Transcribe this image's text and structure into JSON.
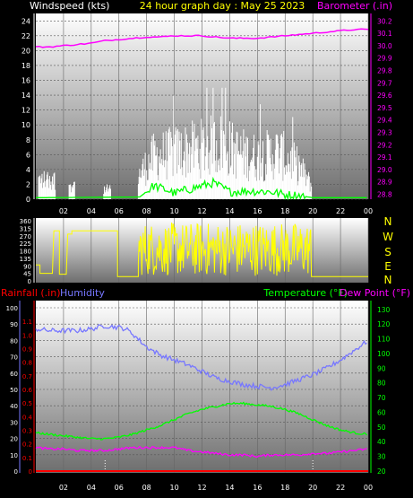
{
  "header": {
    "left": "Windspeed (kts)",
    "center": "24 hour graph day : May 25 2023",
    "right": "Barometer (.in)"
  },
  "lower_header": {
    "rainfall": "Rainfall (.in)",
    "humidity": "Humidity",
    "temperature": "Temperature (°F)",
    "dewpoint": "Dew Point (°F)"
  },
  "compass": [
    "N",
    "W",
    "S",
    "E",
    "N"
  ],
  "colors": {
    "background": "#000000",
    "panel_top": "#ffffff",
    "panel_bottom": "#6e6e6e",
    "wind": "#ffffff",
    "wind_avg": "#00ff00",
    "barometer": "#ff00ff",
    "direction": "#ffff00",
    "rain": "#ff0000",
    "humidity": "#7777ff",
    "temperature": "#00ff00",
    "dewpoint": "#ff00ff",
    "axis_text": "#ffffff"
  },
  "chart_data": [
    {
      "type": "bar",
      "name": "windspeed",
      "x_ticks": [
        "02",
        "04",
        "06",
        "08",
        "10",
        "12",
        "14",
        "16",
        "18",
        "20",
        "22",
        "00"
      ],
      "xlim_hours": [
        0,
        24
      ],
      "ylabel": "Windspeed (kts)",
      "ylim": [
        0,
        25
      ],
      "y_ticks": [
        0,
        2,
        4,
        6,
        8,
        10,
        12,
        14,
        16,
        18,
        20,
        22,
        24
      ],
      "gust_segments": [
        {
          "hours": [
            0.2,
            1.4
          ],
          "max": 4
        },
        {
          "hours": [
            2.4,
            2.8
          ],
          "max": 3
        },
        {
          "hours": [
            4.9,
            5.4
          ],
          "max": 2
        },
        {
          "hours": [
            7.4,
            19.9
          ],
          "max": 15
        }
      ],
      "gust_profile": [
        [
          7.4,
          5
        ],
        [
          8.5,
          9
        ],
        [
          10,
          10
        ],
        [
          12,
          11
        ],
        [
          13.5,
          12
        ],
        [
          14.5,
          10
        ],
        [
          16,
          9
        ],
        [
          17.5,
          10
        ],
        [
          19,
          7
        ],
        [
          19.9,
          3
        ]
      ],
      "avg_profile": [
        [
          0,
          0.2
        ],
        [
          7.5,
          0.3
        ],
        [
          8,
          1
        ],
        [
          8.5,
          1.8
        ],
        [
          9.5,
          1.2
        ],
        [
          10,
          0.8
        ],
        [
          11,
          1.3
        ],
        [
          12,
          1.8
        ],
        [
          12.8,
          2.2
        ],
        [
          13.5,
          1.5
        ],
        [
          14,
          1.0
        ],
        [
          15.5,
          1.1
        ],
        [
          17,
          1.0
        ],
        [
          18,
          0.6
        ],
        [
          19,
          0.5
        ],
        [
          20,
          0.2
        ],
        [
          24,
          0.2
        ]
      ]
    },
    {
      "type": "line",
      "name": "barometer",
      "ylabel": "Barometer (.in)",
      "ylim": [
        28.76,
        30.26
      ],
      "y_ticks": [
        28.8,
        28.9,
        29.0,
        29.1,
        29.2,
        29.3,
        29.4,
        29.5,
        29.6,
        29.7,
        29.8,
        29.9,
        30.0,
        30.1,
        30.2
      ],
      "points": [
        [
          0,
          29.99
        ],
        [
          1,
          29.99
        ],
        [
          2,
          30.0
        ],
        [
          3,
          30.01
        ],
        [
          4,
          30.02
        ],
        [
          5,
          30.04
        ],
        [
          6,
          30.05
        ],
        [
          7,
          30.06
        ],
        [
          8,
          30.07
        ],
        [
          9,
          30.07
        ],
        [
          10,
          30.08
        ],
        [
          11,
          30.08
        ],
        [
          12,
          30.08
        ],
        [
          13,
          30.07
        ],
        [
          14,
          30.06
        ],
        [
          15,
          30.06
        ],
        [
          16,
          30.06
        ],
        [
          17,
          30.07
        ],
        [
          18,
          30.08
        ],
        [
          19,
          30.09
        ],
        [
          20,
          30.1
        ],
        [
          21,
          30.11
        ],
        [
          22,
          30.12
        ],
        [
          23,
          30.13
        ],
        [
          24,
          30.13
        ]
      ]
    },
    {
      "type": "line",
      "name": "wind_direction",
      "x_ticks": [
        "02",
        "04",
        "06",
        "08",
        "10",
        "12",
        "14",
        "16",
        "18",
        "20",
        "22",
        "00"
      ],
      "ylim": [
        0,
        360
      ],
      "y_ticks": [
        0,
        45,
        90,
        135,
        180,
        225,
        270,
        315,
        360
      ],
      "calm_segments": [
        {
          "hours": [
            0.0,
            0.3
          ],
          "deg": 95
        },
        {
          "hours": [
            0.3,
            1.2
          ],
          "deg": 45
        },
        {
          "hours": [
            1.3,
            1.7
          ],
          "deg": 300
        },
        {
          "hours": [
            1.7,
            2.2
          ],
          "deg": 40
        },
        {
          "hours": [
            2.3,
            2.6
          ],
          "deg": 280
        },
        {
          "hours": [
            2.6,
            5.9
          ],
          "deg": 300
        },
        {
          "hours": [
            5.9,
            7.4
          ],
          "deg": 25
        },
        {
          "hours": [
            19.9,
            24
          ],
          "deg": 25
        }
      ],
      "active_hours": [
        7.4,
        19.9
      ],
      "active_range": [
        30,
        350
      ]
    },
    {
      "type": "line",
      "name": "humidity",
      "ylabel": "Humidity",
      "ylim": [
        0,
        100
      ],
      "y_ticks": [
        0,
        10,
        20,
        30,
        40,
        50,
        60,
        70,
        80,
        90,
        100
      ],
      "points": [
        [
          0,
          87
        ],
        [
          1,
          86
        ],
        [
          2,
          86
        ],
        [
          3,
          86
        ],
        [
          4,
          87
        ],
        [
          5,
          89
        ],
        [
          6,
          88
        ],
        [
          6.5,
          87
        ],
        [
          7,
          84
        ],
        [
          8,
          76
        ],
        [
          9,
          71
        ],
        [
          10,
          68
        ],
        [
          11,
          65
        ],
        [
          12,
          61
        ],
        [
          13,
          57
        ],
        [
          14,
          55
        ],
        [
          15,
          53
        ],
        [
          16,
          52
        ],
        [
          17,
          51
        ],
        [
          18,
          53
        ],
        [
          19,
          56
        ],
        [
          20,
          59
        ],
        [
          21,
          63
        ],
        [
          22,
          68
        ],
        [
          23,
          74
        ],
        [
          24,
          80
        ]
      ]
    },
    {
      "type": "line",
      "name": "temperature",
      "ylabel": "Temperature (°F)",
      "ylim": [
        20,
        135
      ],
      "y_ticks": [
        20,
        30,
        40,
        50,
        60,
        70,
        80,
        90,
        100,
        110,
        120,
        130
      ],
      "points": [
        [
          0,
          46
        ],
        [
          1,
          45
        ],
        [
          2,
          44
        ],
        [
          3,
          43
        ],
        [
          4,
          42
        ],
        [
          5,
          42
        ],
        [
          6,
          43
        ],
        [
          7,
          45
        ],
        [
          8,
          48
        ],
        [
          9,
          51
        ],
        [
          10,
          55
        ],
        [
          11,
          59
        ],
        [
          12,
          62
        ],
        [
          13,
          64
        ],
        [
          14,
          66
        ],
        [
          15,
          66
        ],
        [
          16,
          65
        ],
        [
          17,
          64
        ],
        [
          18,
          62
        ],
        [
          19,
          59
        ],
        [
          20,
          55
        ],
        [
          21,
          51
        ],
        [
          22,
          48
        ],
        [
          23,
          46
        ],
        [
          24,
          45
        ]
      ]
    },
    {
      "type": "line",
      "name": "dewpoint",
      "ylabel": "Dew Point (°F)",
      "ylim": [
        20,
        135
      ],
      "points": [
        [
          0,
          36
        ],
        [
          1,
          35
        ],
        [
          2,
          35
        ],
        [
          3,
          34
        ],
        [
          4,
          34
        ],
        [
          5,
          34
        ],
        [
          6,
          35
        ],
        [
          7,
          36
        ],
        [
          8,
          36
        ],
        [
          9,
          36
        ],
        [
          10,
          36
        ],
        [
          11,
          34
        ],
        [
          12,
          33
        ],
        [
          13,
          32
        ],
        [
          14,
          31
        ],
        [
          15,
          31
        ],
        [
          16,
          30
        ],
        [
          17,
          31
        ],
        [
          18,
          31
        ],
        [
          19,
          31
        ],
        [
          20,
          32
        ],
        [
          21,
          32
        ],
        [
          22,
          33
        ],
        [
          23,
          34
        ],
        [
          24,
          35
        ]
      ]
    },
    {
      "type": "line",
      "name": "rainfall",
      "ylabel": "Rainfall (.in)",
      "ylim": [
        0,
        1.2
      ],
      "y_ticks": [
        0,
        0.1,
        0.2,
        0.3,
        0.4,
        0.5,
        0.6,
        0.7,
        0.8,
        0.9,
        1.0,
        1.1
      ],
      "points": [
        [
          0,
          0
        ],
        [
          24,
          0
        ]
      ]
    }
  ]
}
